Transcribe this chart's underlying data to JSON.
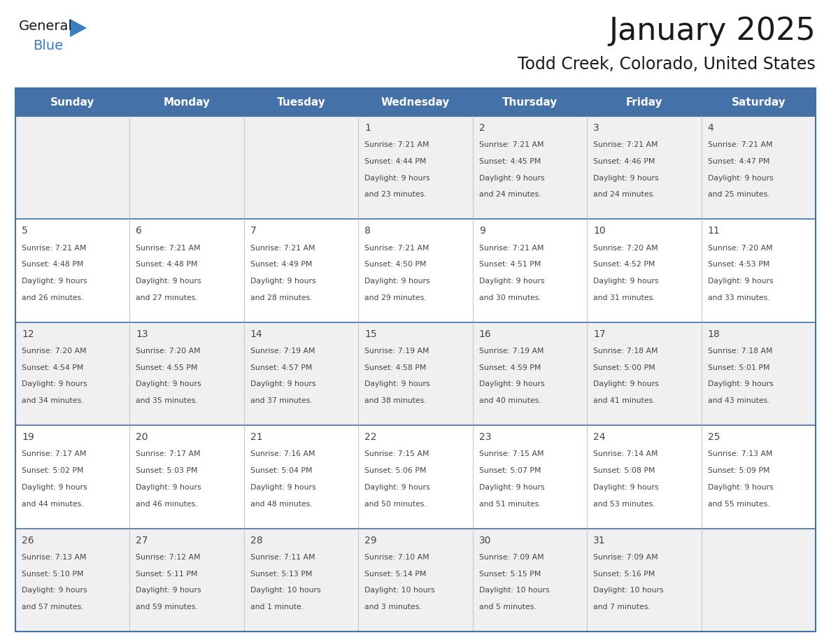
{
  "title": "January 2025",
  "subtitle": "Todd Creek, Colorado, United States",
  "days_of_week": [
    "Sunday",
    "Monday",
    "Tuesday",
    "Wednesday",
    "Thursday",
    "Friday",
    "Saturday"
  ],
  "header_bg": "#4472a8",
  "header_text": "#ffffff",
  "cell_bg_light": "#f0f0f0",
  "cell_bg_white": "#ffffff",
  "row_divider_color": "#4472a8",
  "col_divider_color": "#c8c8c8",
  "outer_border_color": "#4472a8",
  "text_color": "#444444",
  "title_color": "#1a1a1a",
  "subtitle_color": "#1a1a1a",
  "logo_general_color": "#1a1a1a",
  "logo_blue_color": "#3a7ebf",
  "calendar_data": [
    [
      {
        "day": "",
        "sunrise": "",
        "sunset": "",
        "daylight": ""
      },
      {
        "day": "",
        "sunrise": "",
        "sunset": "",
        "daylight": ""
      },
      {
        "day": "",
        "sunrise": "",
        "sunset": "",
        "daylight": ""
      },
      {
        "day": "1",
        "sunrise": "7:21 AM",
        "sunset": "4:44 PM",
        "daylight": "9 hours and 23 minutes."
      },
      {
        "day": "2",
        "sunrise": "7:21 AM",
        "sunset": "4:45 PM",
        "daylight": "9 hours and 24 minutes."
      },
      {
        "day": "3",
        "sunrise": "7:21 AM",
        "sunset": "4:46 PM",
        "daylight": "9 hours and 24 minutes."
      },
      {
        "day": "4",
        "sunrise": "7:21 AM",
        "sunset": "4:47 PM",
        "daylight": "9 hours and 25 minutes."
      }
    ],
    [
      {
        "day": "5",
        "sunrise": "7:21 AM",
        "sunset": "4:48 PM",
        "daylight": "9 hours and 26 minutes."
      },
      {
        "day": "6",
        "sunrise": "7:21 AM",
        "sunset": "4:48 PM",
        "daylight": "9 hours and 27 minutes."
      },
      {
        "day": "7",
        "sunrise": "7:21 AM",
        "sunset": "4:49 PM",
        "daylight": "9 hours and 28 minutes."
      },
      {
        "day": "8",
        "sunrise": "7:21 AM",
        "sunset": "4:50 PM",
        "daylight": "9 hours and 29 minutes."
      },
      {
        "day": "9",
        "sunrise": "7:21 AM",
        "sunset": "4:51 PM",
        "daylight": "9 hours and 30 minutes."
      },
      {
        "day": "10",
        "sunrise": "7:20 AM",
        "sunset": "4:52 PM",
        "daylight": "9 hours and 31 minutes."
      },
      {
        "day": "11",
        "sunrise": "7:20 AM",
        "sunset": "4:53 PM",
        "daylight": "9 hours and 33 minutes."
      }
    ],
    [
      {
        "day": "12",
        "sunrise": "7:20 AM",
        "sunset": "4:54 PM",
        "daylight": "9 hours and 34 minutes."
      },
      {
        "day": "13",
        "sunrise": "7:20 AM",
        "sunset": "4:55 PM",
        "daylight": "9 hours and 35 minutes."
      },
      {
        "day": "14",
        "sunrise": "7:19 AM",
        "sunset": "4:57 PM",
        "daylight": "9 hours and 37 minutes."
      },
      {
        "day": "15",
        "sunrise": "7:19 AM",
        "sunset": "4:58 PM",
        "daylight": "9 hours and 38 minutes."
      },
      {
        "day": "16",
        "sunrise": "7:19 AM",
        "sunset": "4:59 PM",
        "daylight": "9 hours and 40 minutes."
      },
      {
        "day": "17",
        "sunrise": "7:18 AM",
        "sunset": "5:00 PM",
        "daylight": "9 hours and 41 minutes."
      },
      {
        "day": "18",
        "sunrise": "7:18 AM",
        "sunset": "5:01 PM",
        "daylight": "9 hours and 43 minutes."
      }
    ],
    [
      {
        "day": "19",
        "sunrise": "7:17 AM",
        "sunset": "5:02 PM",
        "daylight": "9 hours and 44 minutes."
      },
      {
        "day": "20",
        "sunrise": "7:17 AM",
        "sunset": "5:03 PM",
        "daylight": "9 hours and 46 minutes."
      },
      {
        "day": "21",
        "sunrise": "7:16 AM",
        "sunset": "5:04 PM",
        "daylight": "9 hours and 48 minutes."
      },
      {
        "day": "22",
        "sunrise": "7:15 AM",
        "sunset": "5:06 PM",
        "daylight": "9 hours and 50 minutes."
      },
      {
        "day": "23",
        "sunrise": "7:15 AM",
        "sunset": "5:07 PM",
        "daylight": "9 hours and 51 minutes."
      },
      {
        "day": "24",
        "sunrise": "7:14 AM",
        "sunset": "5:08 PM",
        "daylight": "9 hours and 53 minutes."
      },
      {
        "day": "25",
        "sunrise": "7:13 AM",
        "sunset": "5:09 PM",
        "daylight": "9 hours and 55 minutes."
      }
    ],
    [
      {
        "day": "26",
        "sunrise": "7:13 AM",
        "sunset": "5:10 PM",
        "daylight": "9 hours and 57 minutes."
      },
      {
        "day": "27",
        "sunrise": "7:12 AM",
        "sunset": "5:11 PM",
        "daylight": "9 hours and 59 minutes."
      },
      {
        "day": "28",
        "sunrise": "7:11 AM",
        "sunset": "5:13 PM",
        "daylight": "10 hours and 1 minute."
      },
      {
        "day": "29",
        "sunrise": "7:10 AM",
        "sunset": "5:14 PM",
        "daylight": "10 hours and 3 minutes."
      },
      {
        "day": "30",
        "sunrise": "7:09 AM",
        "sunset": "5:15 PM",
        "daylight": "10 hours and 5 minutes."
      },
      {
        "day": "31",
        "sunrise": "7:09 AM",
        "sunset": "5:16 PM",
        "daylight": "10 hours and 7 minutes."
      },
      {
        "day": "",
        "sunrise": "",
        "sunset": "",
        "daylight": ""
      }
    ]
  ]
}
